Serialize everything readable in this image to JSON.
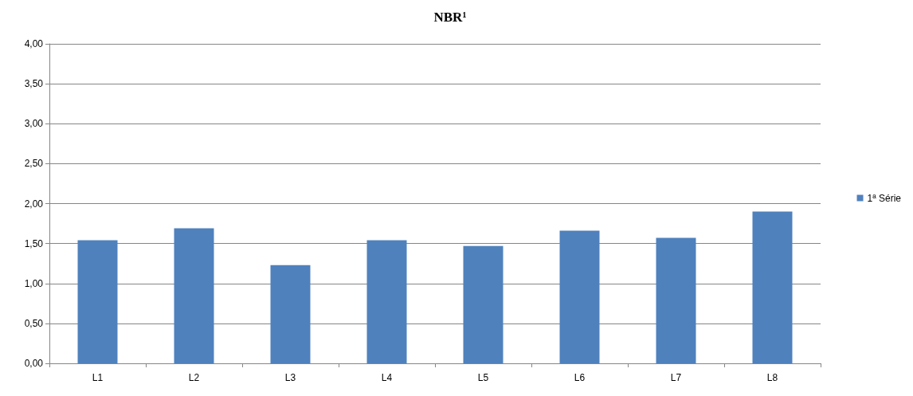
{
  "chart_data": {
    "type": "bar",
    "title": "NBR¹",
    "categories": [
      "L1",
      "L2",
      "L3",
      "L4",
      "L5",
      "L6",
      "L7",
      "L8"
    ],
    "series": [
      {
        "name": "1ª Série",
        "color": "#4f81bd",
        "values": [
          1.54,
          1.69,
          1.23,
          1.54,
          1.47,
          1.66,
          1.57,
          1.9
        ]
      }
    ],
    "ylim": [
      0,
      4
    ],
    "yticks": [
      {
        "value": 0,
        "label": "0,00"
      },
      {
        "value": 0.5,
        "label": "0,50"
      },
      {
        "value": 1,
        "label": "1,00"
      },
      {
        "value": 1.5,
        "label": "1,50"
      },
      {
        "value": 2,
        "label": "2,00"
      },
      {
        "value": 2.5,
        "label": "2,50"
      },
      {
        "value": 3,
        "label": "3,00"
      },
      {
        "value": 3.5,
        "label": "3,50"
      },
      {
        "value": 4,
        "label": "4,00"
      }
    ],
    "grid": "y",
    "legend": "right"
  }
}
